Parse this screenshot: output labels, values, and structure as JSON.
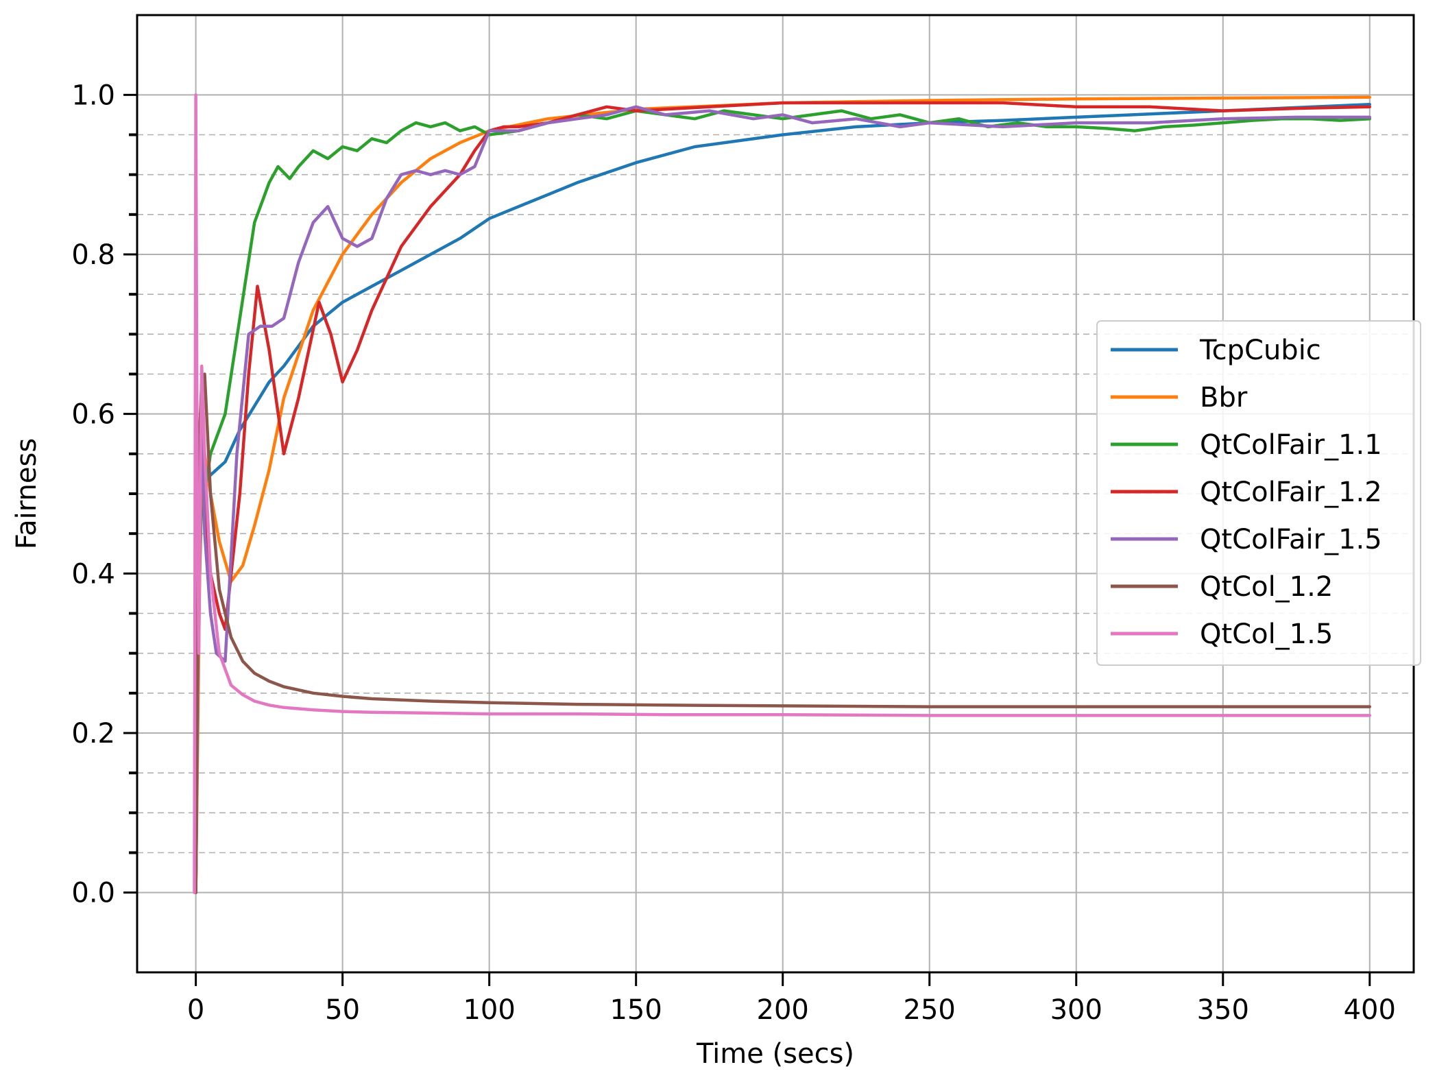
{
  "chart_data": {
    "type": "line",
    "title": "",
    "xlabel": "Time (secs)",
    "ylabel": "Fairness",
    "xlim": [
      -20,
      415
    ],
    "ylim": [
      -0.1,
      1.1
    ],
    "xticks": [
      0,
      50,
      100,
      150,
      200,
      250,
      300,
      350,
      400
    ],
    "xtick_labels": [
      "0",
      "50",
      "100",
      "150",
      "200",
      "250",
      "300",
      "350",
      "400"
    ],
    "yticks": [
      0.0,
      0.2,
      0.4,
      0.6,
      0.8,
      1.0
    ],
    "ytick_labels": [
      "0.0",
      "0.2",
      "0.4",
      "0.6",
      "0.8",
      "1.0"
    ],
    "y_minor_ticks": [
      0.05,
      0.1,
      0.15,
      0.25,
      0.3,
      0.35,
      0.45,
      0.5,
      0.55,
      0.65,
      0.7,
      0.75,
      0.85,
      0.9,
      0.95
    ],
    "grid": true,
    "minor_grid": "dashed",
    "legend_position": "center-right",
    "series": [
      {
        "name": "TcpCubic",
        "color": "#1f77b4",
        "x": [
          0,
          1,
          2,
          4,
          7,
          10,
          15,
          20,
          25,
          30,
          40,
          50,
          60,
          70,
          80,
          90,
          100,
          110,
          120,
          130,
          150,
          170,
          200,
          225,
          250,
          275,
          300,
          325,
          350,
          375,
          400
        ],
        "y": [
          0.0,
          0.35,
          0.5,
          0.52,
          0.53,
          0.54,
          0.58,
          0.61,
          0.64,
          0.66,
          0.71,
          0.74,
          0.76,
          0.78,
          0.8,
          0.82,
          0.845,
          0.86,
          0.875,
          0.89,
          0.915,
          0.935,
          0.95,
          0.96,
          0.965,
          0.968,
          0.972,
          0.976,
          0.98,
          0.984,
          0.988
        ]
      },
      {
        "name": "Bbr",
        "color": "#ff7f0e",
        "x": [
          0,
          1,
          2,
          3,
          5,
          8,
          12,
          16,
          20,
          25,
          30,
          40,
          50,
          60,
          70,
          80,
          90,
          100,
          120,
          150,
          200,
          250,
          300,
          350,
          400
        ],
        "y": [
          0.0,
          0.3,
          0.6,
          0.55,
          0.5,
          0.44,
          0.39,
          0.41,
          0.46,
          0.53,
          0.62,
          0.73,
          0.8,
          0.85,
          0.89,
          0.92,
          0.94,
          0.955,
          0.97,
          0.982,
          0.99,
          0.993,
          0.995,
          0.996,
          0.997
        ]
      },
      {
        "name": "QtColFair_1.1",
        "color": "#2ca02c",
        "x": [
          0,
          1,
          2,
          3,
          5,
          8,
          10,
          15,
          20,
          25,
          28,
          32,
          35,
          40,
          45,
          50,
          55,
          60,
          65,
          70,
          75,
          80,
          85,
          90,
          95,
          100,
          110,
          120,
          130,
          140,
          150,
          160,
          170,
          180,
          190,
          200,
          210,
          220,
          230,
          240,
          250,
          260,
          270,
          280,
          290,
          300,
          310,
          320,
          330,
          340,
          350,
          360,
          370,
          380,
          390,
          400
        ],
        "y": [
          0.0,
          0.4,
          0.6,
          0.5,
          0.55,
          0.58,
          0.6,
          0.72,
          0.84,
          0.89,
          0.91,
          0.895,
          0.91,
          0.93,
          0.92,
          0.935,
          0.93,
          0.945,
          0.94,
          0.955,
          0.965,
          0.96,
          0.965,
          0.955,
          0.96,
          0.95,
          0.955,
          0.965,
          0.975,
          0.97,
          0.98,
          0.975,
          0.97,
          0.98,
          0.975,
          0.97,
          0.975,
          0.98,
          0.97,
          0.975,
          0.965,
          0.97,
          0.96,
          0.965,
          0.96,
          0.96,
          0.958,
          0.955,
          0.96,
          0.962,
          0.965,
          0.968,
          0.97,
          0.97,
          0.968,
          0.97
        ]
      },
      {
        "name": "QtColFair_1.2",
        "color": "#d62728",
        "x": [
          0,
          1,
          2,
          3,
          5,
          8,
          10,
          15,
          18,
          21,
          25,
          30,
          35,
          42,
          46,
          50,
          55,
          60,
          65,
          70,
          80,
          90,
          95,
          100,
          105,
          110,
          120,
          130,
          140,
          150,
          175,
          200,
          225,
          250,
          275,
          300,
          325,
          350,
          375,
          400
        ],
        "y": [
          0.0,
          0.45,
          0.6,
          0.5,
          0.4,
          0.35,
          0.33,
          0.5,
          0.65,
          0.76,
          0.68,
          0.55,
          0.62,
          0.74,
          0.7,
          0.64,
          0.68,
          0.73,
          0.77,
          0.81,
          0.86,
          0.9,
          0.93,
          0.955,
          0.96,
          0.96,
          0.965,
          0.975,
          0.985,
          0.98,
          0.985,
          0.99,
          0.99,
          0.99,
          0.99,
          0.985,
          0.985,
          0.98,
          0.983,
          0.985
        ]
      },
      {
        "name": "QtColFair_1.5",
        "color": "#9467bd",
        "x": [
          0,
          1,
          2,
          3,
          5,
          7,
          10,
          14,
          18,
          22,
          26,
          30,
          35,
          40,
          45,
          50,
          55,
          60,
          65,
          70,
          75,
          80,
          85,
          90,
          95,
          100,
          110,
          120,
          130,
          140,
          150,
          160,
          175,
          190,
          200,
          210,
          225,
          240,
          250,
          275,
          300,
          325,
          350,
          375,
          400
        ],
        "y": [
          0.0,
          0.4,
          0.6,
          0.45,
          0.35,
          0.3,
          0.29,
          0.55,
          0.7,
          0.71,
          0.71,
          0.72,
          0.79,
          0.84,
          0.86,
          0.82,
          0.81,
          0.82,
          0.87,
          0.9,
          0.905,
          0.9,
          0.905,
          0.9,
          0.91,
          0.955,
          0.955,
          0.965,
          0.97,
          0.975,
          0.985,
          0.975,
          0.98,
          0.97,
          0.975,
          0.965,
          0.97,
          0.96,
          0.965,
          0.96,
          0.965,
          0.965,
          0.97,
          0.972,
          0.972
        ]
      },
      {
        "name": "QtCol_1.2",
        "color": "#8c564b",
        "x": [
          0,
          1,
          2,
          3,
          5,
          8,
          12,
          16,
          20,
          25,
          30,
          40,
          50,
          60,
          80,
          100,
          130,
          160,
          200,
          250,
          300,
          350,
          400
        ],
        "y": [
          0.0,
          0.55,
          0.64,
          0.65,
          0.5,
          0.38,
          0.32,
          0.29,
          0.275,
          0.265,
          0.258,
          0.25,
          0.246,
          0.243,
          0.24,
          0.238,
          0.236,
          0.235,
          0.234,
          0.233,
          0.233,
          0.233,
          0.233
        ]
      },
      {
        "name": "QtCol_1.5",
        "color": "#e377c2",
        "x": [
          -0.5,
          0,
          0.5,
          1,
          1.5,
          2,
          3,
          5,
          8,
          12,
          16,
          20,
          25,
          30,
          40,
          50,
          60,
          80,
          100,
          130,
          160,
          200,
          250,
          300,
          350,
          400
        ],
        "y": [
          0.0,
          1.0,
          0.5,
          0.3,
          0.5,
          0.66,
          0.55,
          0.4,
          0.3,
          0.26,
          0.248,
          0.24,
          0.235,
          0.232,
          0.229,
          0.227,
          0.226,
          0.225,
          0.224,
          0.224,
          0.223,
          0.223,
          0.222,
          0.222,
          0.222,
          0.222
        ]
      }
    ]
  }
}
